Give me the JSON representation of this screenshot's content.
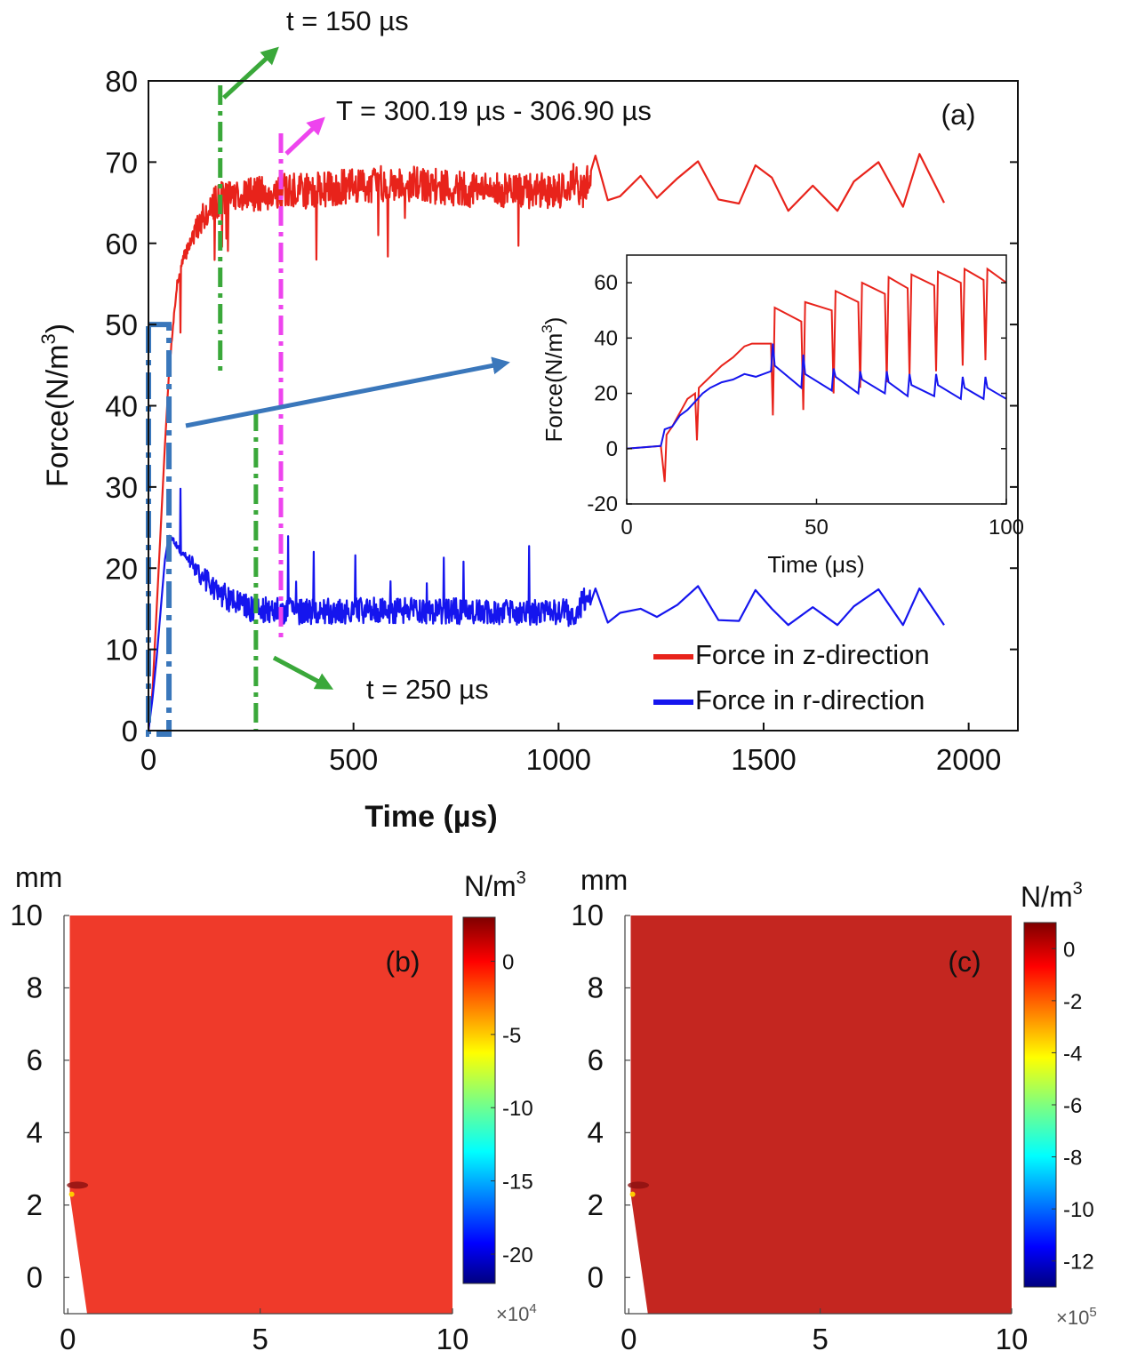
{
  "chart_data": [
    {
      "id": "a",
      "type": "line",
      "panel_label": "(a)",
      "xlabel": "Time (µs)",
      "ylabel": "Force(N/m",
      "ylabel_sup": "3",
      "ylabel_close": ")",
      "xlim": [
        0,
        2120
      ],
      "ylim": [
        0,
        80
      ],
      "xticks": [
        0,
        500,
        1000,
        1500,
        2000
      ],
      "yticks": [
        0,
        10,
        20,
        30,
        40,
        50,
        60,
        70,
        80
      ],
      "series": [
        {
          "name": "Force in z-direction",
          "color": "#e8231b",
          "points": [
            [
              0,
              0
            ],
            [
              10,
              5
            ],
            [
              20,
              15
            ],
            [
              30,
              25
            ],
            [
              40,
              35
            ],
            [
              50,
              44
            ],
            [
              60,
              50
            ],
            [
              70,
              55
            ],
            [
              85,
              58
            ],
            [
              100,
              60
            ],
            [
              130,
              63
            ],
            [
              160,
              65
            ],
            [
              200,
              66
            ],
            [
              250,
              66
            ],
            [
              300,
              66.3
            ],
            [
              400,
              66.5
            ],
            [
              500,
              67
            ],
            [
              600,
              67.5
            ],
            [
              700,
              67
            ],
            [
              800,
              66.5
            ],
            [
              900,
              66.5
            ],
            [
              1000,
              66.5
            ],
            [
              1020,
              67
            ],
            [
              1040,
              68
            ],
            [
              1060,
              66
            ],
            [
              1090,
              70.8
            ],
            [
              1120,
              65.3
            ],
            [
              1150,
              65.8
            ],
            [
              1200,
              68.3
            ],
            [
              1240,
              65.6
            ],
            [
              1290,
              68
            ],
            [
              1340,
              70.1
            ],
            [
              1390,
              65.4
            ],
            [
              1440,
              64.9
            ],
            [
              1480,
              69.6
            ],
            [
              1520,
              68.1
            ],
            [
              1560,
              64
            ],
            [
              1620,
              67.1
            ],
            [
              1680,
              64
            ],
            [
              1720,
              67.6
            ],
            [
              1780,
              70
            ],
            [
              1840,
              64.5
            ],
            [
              1880,
              71
            ],
            [
              1940,
              65
            ]
          ]
        },
        {
          "name": "Force in r-direction",
          "color": "#1515ee",
          "points": [
            [
              0,
              0
            ],
            [
              10,
              4
            ],
            [
              20,
              9
            ],
            [
              30,
              15
            ],
            [
              40,
              21
            ],
            [
              50,
              24
            ],
            [
              60,
              23.5
            ],
            [
              80,
              22
            ],
            [
              100,
              21
            ],
            [
              130,
              19
            ],
            [
              160,
              17.5
            ],
            [
              200,
              16
            ],
            [
              250,
              15
            ],
            [
              300,
              14.8
            ],
            [
              400,
              14.6
            ],
            [
              500,
              14.8
            ],
            [
              600,
              14.8
            ],
            [
              700,
              14.7
            ],
            [
              800,
              14.7
            ],
            [
              900,
              14.6
            ],
            [
              1000,
              14.6
            ],
            [
              1020,
              14.6
            ],
            [
              1040,
              14
            ],
            [
              1060,
              16
            ],
            [
              1090,
              17.5
            ],
            [
              1120,
              13.3
            ],
            [
              1150,
              14.5
            ],
            [
              1200,
              15
            ],
            [
              1240,
              14
            ],
            [
              1290,
              15.5
            ],
            [
              1340,
              17.8
            ],
            [
              1390,
              13.6
            ],
            [
              1440,
              13.5
            ],
            [
              1480,
              17.3
            ],
            [
              1520,
              15
            ],
            [
              1560,
              13
            ],
            [
              1620,
              15.2
            ],
            [
              1680,
              13
            ],
            [
              1720,
              15.3
            ],
            [
              1780,
              17.4
            ],
            [
              1840,
              13
            ],
            [
              1880,
              17.5
            ],
            [
              1940,
              13
            ]
          ]
        }
      ],
      "noise_region_end": 1080,
      "annotations": [
        {
          "label": "t = 150 µs",
          "x": 175,
          "color": "#3aa83a"
        },
        {
          "label": "t = 250 µs",
          "x": 262,
          "color": "#3aa83a"
        },
        {
          "label": "T = 300.19 µs - 306.90 µs",
          "x": 323,
          "color": "#ee44ee"
        }
      ],
      "zoom_box_color": "#3a77bb",
      "zoom_box": {
        "x": [
          0,
          50
        ],
        "y": [
          0,
          50
        ]
      },
      "legend_position": "bottom-right"
    },
    {
      "id": "a-inset",
      "type": "line",
      "xlabel": "Time (μs)",
      "ylabel": "Force(N/m",
      "ylabel_sup": "3",
      "ylabel_close": ")",
      "xlim": [
        0,
        100
      ],
      "ylim": [
        -20,
        70
      ],
      "xticks": [
        0,
        50,
        100
      ],
      "yticks": [
        -20,
        0,
        20,
        40,
        60
      ],
      "series": [
        {
          "name": "Force in z-direction",
          "color": "#e8231b",
          "points": [
            [
              0,
              0
            ],
            [
              9,
              1
            ],
            [
              10,
              -12
            ],
            [
              10.5,
              5
            ],
            [
              12,
              8
            ],
            [
              14,
              13
            ],
            [
              16,
              18
            ],
            [
              18,
              20
            ],
            [
              18.5,
              3
            ],
            [
              19,
              22
            ],
            [
              22,
              26
            ],
            [
              25,
              30
            ],
            [
              28,
              33
            ],
            [
              31,
              37
            ],
            [
              33,
              38
            ],
            [
              38,
              38
            ],
            [
              38.5,
              12
            ],
            [
              39,
              51
            ],
            [
              46,
              46
            ],
            [
              46.5,
              14
            ],
            [
              47,
              53
            ],
            [
              54,
              50
            ],
            [
              54.5,
              20
            ],
            [
              55,
              57
            ],
            [
              61,
              53
            ],
            [
              61.5,
              22
            ],
            [
              62,
              60
            ],
            [
              68,
              56
            ],
            [
              68.5,
              24
            ],
            [
              69,
              62
            ],
            [
              74,
              58
            ],
            [
              74.5,
              26
            ],
            [
              75,
              63
            ],
            [
              81,
              59
            ],
            [
              81.5,
              28
            ],
            [
              82,
              64
            ],
            [
              88,
              60
            ],
            [
              88.5,
              30
            ],
            [
              89,
              65
            ],
            [
              94,
              61
            ],
            [
              94.5,
              32
            ],
            [
              95,
              65
            ],
            [
              100,
              60
            ]
          ]
        },
        {
          "name": "Force in r-direction",
          "color": "#1515ee",
          "points": [
            [
              0,
              0
            ],
            [
              9,
              1
            ],
            [
              10,
              7
            ],
            [
              12,
              8
            ],
            [
              14,
              12
            ],
            [
              16,
              14
            ],
            [
              18,
              17
            ],
            [
              20,
              20
            ],
            [
              22,
              22
            ],
            [
              25,
              24
            ],
            [
              28,
              25
            ],
            [
              31,
              27
            ],
            [
              34,
              26
            ],
            [
              38,
              28
            ],
            [
              38.5,
              38
            ],
            [
              39,
              30
            ],
            [
              46,
              22
            ],
            [
              46.5,
              34
            ],
            [
              47,
              27
            ],
            [
              54,
              21
            ],
            [
              54.5,
              29
            ],
            [
              55,
              26
            ],
            [
              61,
              20
            ],
            [
              61.5,
              28
            ],
            [
              62,
              25
            ],
            [
              68,
              20
            ],
            [
              68.5,
              28
            ],
            [
              69,
              24
            ],
            [
              74,
              19
            ],
            [
              74.5,
              27
            ],
            [
              75,
              23
            ],
            [
              81,
              19
            ],
            [
              81.5,
              27
            ],
            [
              82,
              23
            ],
            [
              88,
              18
            ],
            [
              88.5,
              26
            ],
            [
              89,
              22
            ],
            [
              94,
              18
            ],
            [
              94.5,
              26
            ],
            [
              95,
              22
            ],
            [
              100,
              18
            ]
          ]
        }
      ]
    },
    {
      "id": "b",
      "type": "heatmap",
      "panel_label": "(b)",
      "unit_label": "mm",
      "colorbar_label": "N/m",
      "colorbar_label_sup": "3",
      "colorbar_ticks": [
        "0",
        "-5",
        "-10",
        "-15",
        "-20"
      ],
      "colorbar_range": [
        -22,
        3
      ],
      "colorbar_exponent_base": "×10",
      "colorbar_exponent_power": "4",
      "xlim": [
        -0.1,
        10
      ],
      "ylim": [
        -1,
        10
      ],
      "xticks": [
        "0",
        "5",
        "10"
      ],
      "yticks": [
        "0",
        "2",
        "4",
        "6",
        "8",
        "10"
      ],
      "field_color": "#ef3a2a"
    },
    {
      "id": "c",
      "type": "heatmap",
      "panel_label": "(c)",
      "unit_label": "mm",
      "colorbar_label": "N/m",
      "colorbar_label_sup": "3",
      "colorbar_ticks": [
        "0",
        "-2",
        "-4",
        "-6",
        "-8",
        "-10",
        "-12"
      ],
      "colorbar_range": [
        -13,
        1
      ],
      "colorbar_exponent_base": "×10",
      "colorbar_exponent_power": "5",
      "xlim": [
        -0.1,
        10
      ],
      "ylim": [
        -1,
        10
      ],
      "xticks": [
        "0",
        "5",
        "10"
      ],
      "yticks": [
        "0",
        "2",
        "4",
        "6",
        "8",
        "10"
      ],
      "field_color": "#c42620"
    }
  ]
}
